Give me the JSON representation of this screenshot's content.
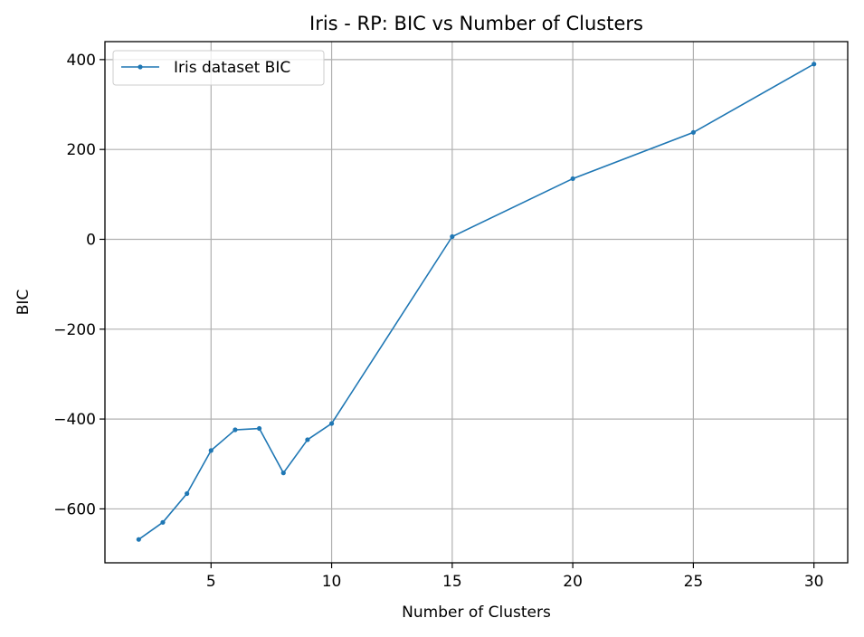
{
  "chart_data": {
    "type": "line",
    "title": "Iris - RP: BIC vs Number of Clusters",
    "xlabel": "Number of Clusters",
    "ylabel": "BIC",
    "xlim": [
      0.6,
      31.4
    ],
    "ylim": [
      -720,
      440
    ],
    "xticks": [
      5,
      10,
      15,
      20,
      25,
      30
    ],
    "yticks": [
      -600,
      -400,
      -200,
      0,
      200,
      400
    ],
    "ytick_labels": [
      "−600",
      "−400",
      "−200",
      "0",
      "200",
      "400"
    ],
    "grid": true,
    "legend_position": "top-left",
    "series": [
      {
        "name": "Iris dataset BIC",
        "color": "#1f77b4",
        "marker": "dot",
        "x": [
          2,
          3,
          4,
          5,
          6,
          7,
          8,
          9,
          10,
          15,
          20,
          25,
          30
        ],
        "y": [
          -668,
          -630,
          -566,
          -470,
          -424,
          -421,
          -520,
          -446,
          -410,
          6,
          135,
          238,
          390
        ]
      }
    ]
  }
}
